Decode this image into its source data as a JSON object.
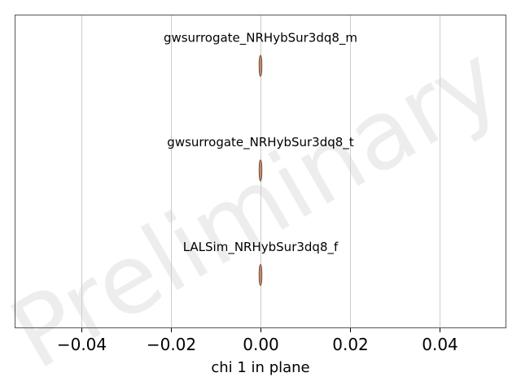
{
  "chart_data": {
    "type": "violin",
    "xlabel": "chi 1 in plane",
    "ylabel": "",
    "xlim": [
      -0.055,
      0.055
    ],
    "xticks": [
      -0.04,
      -0.02,
      0.0,
      0.02,
      0.04
    ],
    "xtick_labels": [
      "−0.04",
      "−0.02",
      "0.00",
      "0.02",
      "0.04"
    ],
    "grid": "vertical",
    "series": [
      {
        "name": "gwsurrogate_NRHybSur3dq8_m",
        "x": 0.0
      },
      {
        "name": "gwsurrogate_NRHybSur3dq8_t",
        "x": 0.0
      },
      {
        "name": "LALSim_NRHybSur3dq8_f",
        "x": 0.0
      }
    ],
    "watermark": "Preliminary",
    "colors": {
      "violin_fill": "#c08a6a",
      "violin_edge": "#6b4a3a",
      "grid": "#cccccc",
      "frame": "#555555"
    }
  }
}
